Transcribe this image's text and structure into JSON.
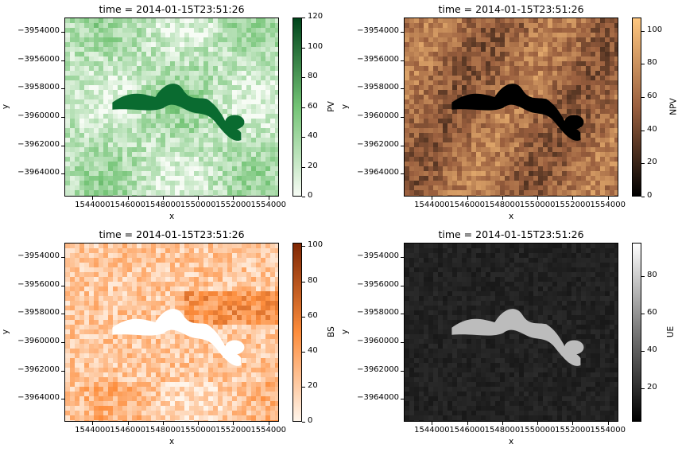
{
  "chart_data": [
    {
      "type": "heatmap",
      "title": "time = 2014-01-15T23:51:26",
      "xlabel": "x",
      "ylabel": "y",
      "xticks": [
        1544000,
        1546000,
        1548000,
        1550000,
        1552000,
        1554000
      ],
      "xtick_labels": [
        "1544000",
        "1546000",
        "1548000",
        "1550000",
        "1552000",
        "1554000"
      ],
      "yticks": [
        -3954000,
        -3956000,
        -3958000,
        -3960000,
        -3962000,
        -3964000
      ],
      "ytick_labels": [
        "−3954000",
        "−3956000",
        "−3958000",
        "−3960000",
        "−3962000",
        "−3964000"
      ],
      "xlim": [
        1542400,
        1554600
      ],
      "ylim": [
        -3965600,
        -3953000
      ],
      "colorbar": {
        "label": "PV",
        "cmap": "Greens",
        "range": [
          0,
          120
        ],
        "ticks": [
          0,
          20,
          40,
          60,
          80,
          100,
          120
        ],
        "tick_labels": [
          "0",
          "20",
          "40",
          "60",
          "80",
          "100",
          "120"
        ]
      },
      "colors": {
        "low": "#f7fcf5",
        "mid": "#74c476",
        "high": "#00441b",
        "water": "#0a6b30"
      }
    },
    {
      "type": "heatmap",
      "title": "time = 2014-01-15T23:51:26",
      "xlabel": "x",
      "ylabel": "y",
      "xticks": [
        1544000,
        1546000,
        1548000,
        1550000,
        1552000,
        1554000
      ],
      "xtick_labels": [
        "1544000",
        "1546000",
        "1548000",
        "1550000",
        "1552000",
        "1554000"
      ],
      "yticks": [
        -3954000,
        -3956000,
        -3958000,
        -3960000,
        -3962000,
        -3964000
      ],
      "ytick_labels": [
        "−3954000",
        "−3956000",
        "−3958000",
        "−3960000",
        "−3962000",
        "−3964000"
      ],
      "xlim": [
        1542400,
        1554600
      ],
      "ylim": [
        -3965600,
        -3953000
      ],
      "colorbar": {
        "label": "NPV",
        "cmap": "copper",
        "range": [
          0,
          108
        ],
        "ticks": [
          0,
          20,
          40,
          60,
          80,
          100
        ],
        "tick_labels": [
          "0",
          "20",
          "40",
          "60",
          "80",
          "100"
        ]
      },
      "colors": {
        "low": "#000000",
        "mid": "#9a5f3e",
        "high": "#ffc77f",
        "water": "#000000"
      }
    },
    {
      "type": "heatmap",
      "title": "time = 2014-01-15T23:51:26",
      "xlabel": "x",
      "ylabel": "y",
      "xticks": [
        1544000,
        1546000,
        1548000,
        1550000,
        1552000,
        1554000
      ],
      "xtick_labels": [
        "1544000",
        "1546000",
        "1548000",
        "1550000",
        "1552000",
        "1554000"
      ],
      "yticks": [
        -3954000,
        -3956000,
        -3958000,
        -3960000,
        -3962000,
        -3964000
      ],
      "ytick_labels": [
        "−3954000",
        "−3956000",
        "−3958000",
        "−3960000",
        "−3962000",
        "−3964000"
      ],
      "xlim": [
        1542400,
        1554600
      ],
      "ylim": [
        -3965600,
        -3953000
      ],
      "colorbar": {
        "label": "BS",
        "cmap": "Oranges",
        "range": [
          0,
          102
        ],
        "ticks": [
          0,
          20,
          40,
          60,
          80,
          100
        ],
        "tick_labels": [
          "0",
          "20",
          "40",
          "60",
          "80",
          "100"
        ]
      },
      "colors": {
        "low": "#fff5eb",
        "mid": "#fd8d3c",
        "high": "#7f2704",
        "water": "#ffffff"
      }
    },
    {
      "type": "heatmap",
      "title": "time = 2014-01-15T23:51:26",
      "xlabel": "x",
      "ylabel": "y",
      "xticks": [
        1544000,
        1546000,
        1548000,
        1550000,
        1552000,
        1554000
      ],
      "xtick_labels": [
        "1544000",
        "1546000",
        "1548000",
        "1550000",
        "1552000",
        "1554000"
      ],
      "yticks": [
        -3954000,
        -3956000,
        -3958000,
        -3960000,
        -3962000,
        -3964000
      ],
      "ytick_labels": [
        "−3954000",
        "−3956000",
        "−3958000",
        "−3960000",
        "−3962000",
        "−3964000"
      ],
      "xlim": [
        1542400,
        1554600
      ],
      "ylim": [
        -3965600,
        -3953000
      ],
      "colorbar": {
        "label": "UE",
        "cmap": "gray",
        "range": [
          2,
          98
        ],
        "ticks": [
          20,
          40,
          60,
          80
        ],
        "tick_labels": [
          "20",
          "40",
          "60",
          "80"
        ]
      },
      "colors": {
        "low": "#000000",
        "mid": "#777777",
        "high": "#ffffff",
        "water": "#bcbcbc"
      }
    }
  ]
}
